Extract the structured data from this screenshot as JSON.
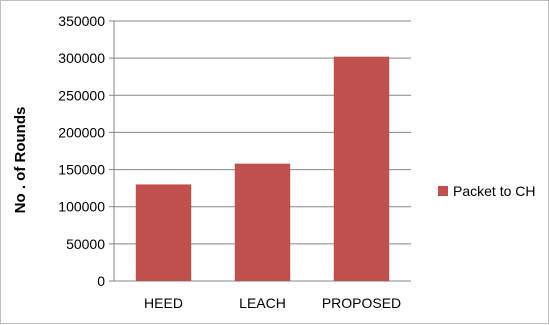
{
  "chart_data": {
    "type": "bar",
    "title": "",
    "xlabel": "",
    "ylabel": "No . of Rounds",
    "categories": [
      "HEED",
      "LEACH",
      "PROPOSED"
    ],
    "series": [
      {
        "name": "Packet to CH",
        "values": [
          130000,
          158000,
          302000
        ],
        "color": "#c0504d"
      }
    ],
    "ylim": [
      0,
      350000
    ],
    "yticks": [
      0,
      50000,
      100000,
      150000,
      200000,
      250000,
      300000,
      350000
    ],
    "grid": true,
    "legend": "right"
  }
}
